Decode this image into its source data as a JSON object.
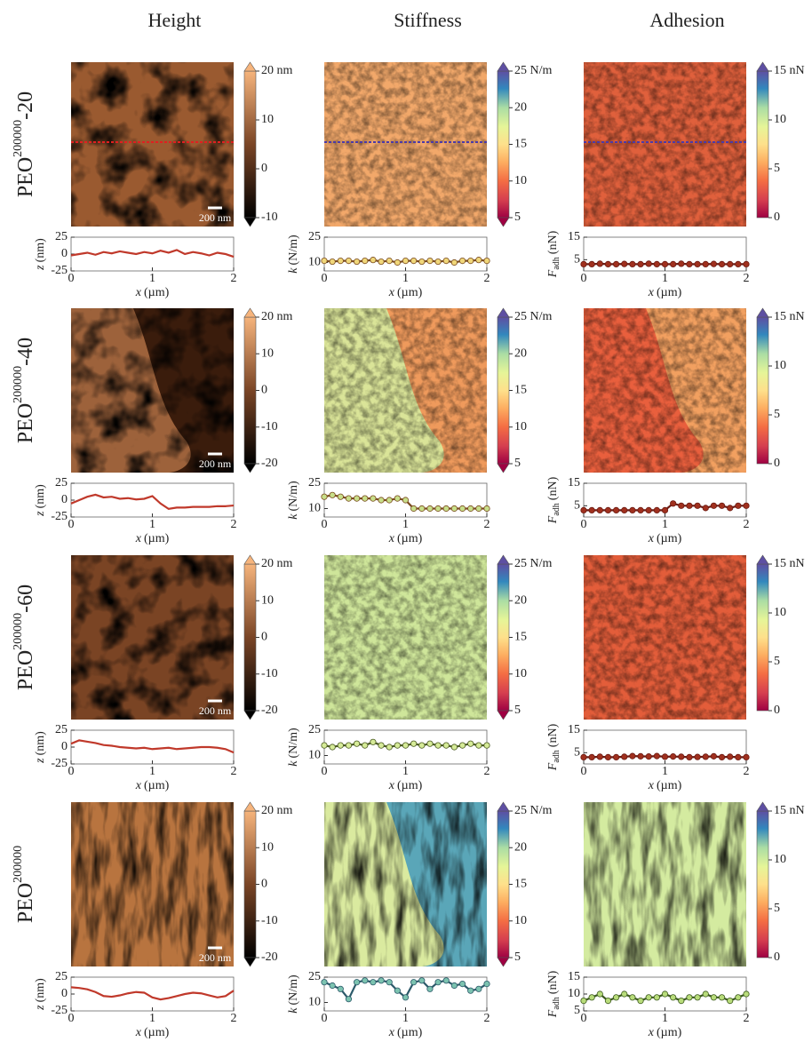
{
  "columns": [
    "Height",
    "Stiffness",
    "Adhesion"
  ],
  "rows": [
    {
      "label": {
        "base": "PEO",
        "sup": "200000",
        "suffix": "-20"
      }
    },
    {
      "label": {
        "base": "PEO",
        "sup": "200000",
        "suffix": "-40"
      }
    },
    {
      "label": {
        "base": "PEO",
        "sup": "200000",
        "suffix": "-60"
      }
    },
    {
      "label": {
        "base": "PEO",
        "sup": "200000"
      }
    }
  ],
  "chart_data": [
    {
      "type": "line",
      "map_color": "#9a5a30",
      "map_texture": "blob",
      "scale_bar": "200 nm",
      "colorbar": {
        "colormap": "copper",
        "extend": "both",
        "lim": [
          -10,
          20
        ],
        "ticks": [
          -10,
          0,
          10,
          {
            "value": 20,
            "label": "20 nm"
          }
        ]
      },
      "ylabel": {
        "symbol": "z",
        "unit": "(nm)"
      },
      "xlabel": {
        "symbol": "x",
        "unit": "(µm)"
      },
      "color": "#c0392b",
      "x": [
        0,
        0.1,
        0.2,
        0.3,
        0.4,
        0.5,
        0.6,
        0.7,
        0.8,
        0.9,
        1,
        1.1,
        1.2,
        1.3,
        1.4,
        1.5,
        1.6,
        1.7,
        1.8,
        1.9,
        2
      ],
      "values": [
        -2,
        0,
        2,
        -1,
        3,
        1,
        4,
        2,
        0,
        3,
        1,
        5,
        2,
        6,
        0,
        3,
        1,
        -2,
        2,
        0,
        -4
      ],
      "xlim": [
        0,
        2
      ],
      "xticks": [
        0,
        1,
        2
      ],
      "ylim": [
        -25,
        25
      ],
      "yticks": [
        -25,
        0,
        25
      ]
    },
    {
      "type": "line-markers",
      "map_color": "#f2a86a",
      "map_texture": "fine",
      "colorbar": {
        "colormap": "spectral",
        "extend": "both",
        "lim": [
          5,
          25
        ],
        "ticks": [
          5,
          10,
          15,
          20,
          {
            "value": 25,
            "label": "25 N/m"
          }
        ]
      },
      "ylabel": {
        "symbol": "k",
        "unit": "(N/m)"
      },
      "xlabel": {
        "symbol": "x",
        "unit": "(µm)"
      },
      "color": "#7a4b1e",
      "marker_color": "#f0d77a",
      "x": [
        0,
        0.1,
        0.2,
        0.3,
        0.4,
        0.5,
        0.6,
        0.7,
        0.8,
        0.9,
        1,
        1.1,
        1.2,
        1.3,
        1.4,
        1.5,
        1.6,
        1.7,
        1.8,
        1.9,
        2
      ],
      "values": [
        11,
        10.5,
        11,
        11,
        10.5,
        11,
        11.5,
        10.5,
        11,
        10,
        11,
        11,
        10.5,
        11,
        10.5,
        11,
        10,
        11,
        11,
        11.5,
        11
      ],
      "xlim": [
        0,
        2
      ],
      "xticks": [
        0,
        1,
        2
      ],
      "ylim": [
        5,
        25
      ],
      "yticks": [
        10,
        25
      ]
    },
    {
      "type": "line-markers",
      "map_color": "#e0603c",
      "map_texture": "fine",
      "colorbar": {
        "colormap": "spectral",
        "extend": "max",
        "lim": [
          0,
          15
        ],
        "ticks": [
          0,
          5,
          10,
          {
            "value": 15,
            "label": "15 nN"
          }
        ]
      },
      "ylabel": {
        "symbol": "F",
        "subscript": "adh",
        "unit": "(nN)"
      },
      "xlabel": {
        "symbol": "x",
        "unit": "(µm)"
      },
      "color": "#6b1a12",
      "marker_color": "#a0301e",
      "x": [
        0,
        0.1,
        0.2,
        0.3,
        0.4,
        0.5,
        0.6,
        0.7,
        0.8,
        0.9,
        1,
        1.1,
        1.2,
        1.3,
        1.4,
        1.5,
        1.6,
        1.7,
        1.8,
        1.9,
        2
      ],
      "values": [
        3,
        3,
        3.2,
        3,
        3,
        3.1,
        3,
        3,
        3.2,
        3,
        3,
        3,
        3.2,
        3,
        3,
        3,
        3.1,
        3,
        3,
        3,
        3
      ],
      "xlim": [
        0,
        2
      ],
      "xticks": [
        0,
        1,
        2
      ],
      "ylim": [
        0,
        15
      ],
      "yticks": [
        5,
        15
      ]
    },
    {
      "type": "line",
      "map_color": "#3a1c0c",
      "map_region_color": "#a86a40",
      "map_texture": "blob",
      "scale_bar": "200 nm",
      "colorbar": {
        "colormap": "copper",
        "extend": "both",
        "lim": [
          -20,
          20
        ],
        "ticks": [
          -20,
          -10,
          0,
          10,
          {
            "value": 20,
            "label": "20 nm"
          }
        ]
      },
      "ylabel": {
        "symbol": "z",
        "unit": "(nm)"
      },
      "xlabel": {
        "symbol": "x",
        "unit": "(µm)"
      },
      "color": "#c0392b",
      "x": [
        0,
        0.1,
        0.2,
        0.3,
        0.4,
        0.5,
        0.6,
        0.7,
        0.8,
        0.9,
        1,
        1.1,
        1.2,
        1.3,
        1.4,
        1.5,
        1.6,
        1.7,
        1.8,
        1.9,
        2
      ],
      "values": [
        -5,
        0,
        5,
        8,
        4,
        5,
        2,
        3,
        1,
        2,
        6,
        -5,
        -13,
        -11,
        -11,
        -10,
        -10,
        -10,
        -9,
        -9,
        -8
      ],
      "xlim": [
        0,
        2
      ],
      "xticks": [
        0,
        1,
        2
      ],
      "ylim": [
        -25,
        25
      ],
      "yticks": [
        -25,
        0,
        25
      ]
    },
    {
      "type": "line-markers",
      "map_color": "#ef9a5c",
      "map_region_color": "#d7ec9e",
      "map_texture": "fine",
      "colorbar": {
        "colormap": "spectral",
        "extend": "both",
        "lim": [
          5,
          25
        ],
        "ticks": [
          5,
          10,
          15,
          20,
          {
            "value": 25,
            "label": "25 N/m"
          }
        ]
      },
      "ylabel": {
        "symbol": "k",
        "unit": "(N/m)"
      },
      "xlabel": {
        "symbol": "x",
        "unit": "(µm)"
      },
      "color": "#7a4b1e",
      "marker_color": "#c8df8a",
      "x": [
        0,
        0.1,
        0.2,
        0.3,
        0.4,
        0.5,
        0.6,
        0.7,
        0.8,
        0.9,
        1,
        1.1,
        1.2,
        1.3,
        1.4,
        1.5,
        1.6,
        1.7,
        1.8,
        1.9,
        2
      ],
      "values": [
        17,
        18,
        17,
        16,
        16,
        16,
        16,
        15,
        15,
        16,
        15,
        10,
        10,
        10,
        10,
        10,
        10,
        10,
        10,
        10,
        10
      ],
      "xlim": [
        0,
        2
      ],
      "xticks": [
        0,
        1,
        2
      ],
      "ylim": [
        5,
        25
      ],
      "yticks": [
        10,
        25
      ]
    },
    {
      "type": "line-markers",
      "map_color": "#f2a060",
      "map_region_color": "#e8583a",
      "map_texture": "fine",
      "colorbar": {
        "colormap": "spectral",
        "extend": "max",
        "lim": [
          0,
          15
        ],
        "ticks": [
          0,
          5,
          10,
          {
            "value": 15,
            "label": "15 nN"
          }
        ]
      },
      "ylabel": {
        "symbol": "F",
        "subscript": "adh",
        "unit": "(nN)"
      },
      "xlabel": {
        "symbol": "x",
        "unit": "(µm)"
      },
      "color": "#6b1a12",
      "marker_color": "#a0301e",
      "x": [
        0,
        0.1,
        0.2,
        0.3,
        0.4,
        0.5,
        0.6,
        0.7,
        0.8,
        0.9,
        1,
        1.1,
        1.2,
        1.3,
        1.4,
        1.5,
        1.6,
        1.7,
        1.8,
        1.9,
        2
      ],
      "values": [
        3,
        3,
        3,
        3,
        3,
        3,
        3,
        3,
        3,
        3,
        3,
        6,
        5,
        5,
        5,
        4,
        5,
        5,
        4,
        5,
        5
      ],
      "xlim": [
        0,
        2
      ],
      "xticks": [
        0,
        1,
        2
      ],
      "ylim": [
        0,
        15
      ],
      "yticks": [
        5,
        15
      ]
    },
    {
      "type": "line",
      "map_color": "#7a4424",
      "map_texture": "blob",
      "scale_bar": "200 nm",
      "colorbar": {
        "colormap": "copper",
        "extend": "both",
        "lim": [
          -20,
          20
        ],
        "ticks": [
          -20,
          -10,
          0,
          10,
          {
            "value": 20,
            "label": "20 nm"
          }
        ]
      },
      "ylabel": {
        "symbol": "z",
        "unit": "(nm)"
      },
      "xlabel": {
        "symbol": "x",
        "unit": "(µm)"
      },
      "color": "#c0392b",
      "x": [
        0,
        0.1,
        0.2,
        0.3,
        0.4,
        0.5,
        0.6,
        0.7,
        0.8,
        0.9,
        1,
        1.1,
        1.2,
        1.3,
        1.4,
        1.5,
        1.6,
        1.7,
        1.8,
        1.9,
        2
      ],
      "values": [
        5,
        10,
        8,
        6,
        3,
        2,
        0,
        -1,
        -2,
        -1,
        -3,
        -2,
        -1,
        -3,
        -2,
        -1,
        0,
        0,
        -1,
        -3,
        -8
      ],
      "xlim": [
        0,
        2
      ],
      "xticks": [
        0,
        1,
        2
      ],
      "ylim": [
        -25,
        25
      ],
      "yticks": [
        -25,
        0,
        25
      ]
    },
    {
      "type": "line-markers",
      "map_color": "#cfe69a",
      "map_texture": "fine",
      "colorbar": {
        "colormap": "spectral",
        "extend": "both",
        "lim": [
          5,
          25
        ],
        "ticks": [
          5,
          10,
          15,
          20,
          {
            "value": 25,
            "label": "25 N/m"
          }
        ]
      },
      "ylabel": {
        "symbol": "k",
        "unit": "(N/m)"
      },
      "xlabel": {
        "symbol": "x",
        "unit": "(µm)"
      },
      "color": "#4a5a22",
      "marker_color": "#d6eb98",
      "x": [
        0,
        0.1,
        0.2,
        0.3,
        0.4,
        0.5,
        0.6,
        0.7,
        0.8,
        0.9,
        1,
        1.1,
        1.2,
        1.3,
        1.4,
        1.5,
        1.6,
        1.7,
        1.8,
        1.9,
        2
      ],
      "values": [
        16,
        15,
        16,
        16,
        17,
        16,
        18,
        16,
        15,
        16,
        16,
        17,
        16,
        17,
        16,
        16,
        15,
        16,
        17,
        16,
        16
      ],
      "xlim": [
        0,
        2
      ],
      "xticks": [
        0,
        1,
        2
      ],
      "ylim": [
        5,
        25
      ],
      "yticks": [
        10,
        25
      ]
    },
    {
      "type": "line-markers",
      "map_color": "#e35d3a",
      "map_texture": "fine",
      "colorbar": {
        "colormap": "spectral",
        "extend": "max",
        "lim": [
          0,
          15
        ],
        "ticks": [
          0,
          5,
          10,
          {
            "value": 15,
            "label": "15 nN"
          }
        ]
      },
      "ylabel": {
        "symbol": "F",
        "subscript": "adh",
        "unit": "(nN)"
      },
      "xlabel": {
        "symbol": "x",
        "unit": "(µm)"
      },
      "color": "#6b1a12",
      "marker_color": "#a0301e",
      "x": [
        0,
        0.1,
        0.2,
        0.3,
        0.4,
        0.5,
        0.6,
        0.7,
        0.8,
        0.9,
        1,
        1.1,
        1.2,
        1.3,
        1.4,
        1.5,
        1.6,
        1.7,
        1.8,
        1.9,
        2
      ],
      "values": [
        3,
        3,
        3.2,
        3,
        3,
        3.2,
        3.5,
        3.4,
        3.3,
        3.5,
        3.2,
        3.3,
        3.2,
        3,
        3.1,
        3.2,
        3.4,
        3,
        3.2,
        3,
        3
      ],
      "xlim": [
        0,
        2
      ],
      "xticks": [
        0,
        1,
        2
      ],
      "ylim": [
        0,
        15
      ],
      "yticks": [
        5,
        15
      ]
    },
    {
      "type": "line",
      "map_color": "#b8743f",
      "map_texture": "streak",
      "scale_bar": "200 nm",
      "colorbar": {
        "colormap": "copper",
        "extend": "both",
        "lim": [
          -20,
          20
        ],
        "ticks": [
          -20,
          -10,
          0,
          10,
          {
            "value": 20,
            "label": "20 nm"
          }
        ]
      },
      "ylabel": {
        "symbol": "z",
        "unit": "(nm)"
      },
      "xlabel": {
        "symbol": "x",
        "unit": "(µm)"
      },
      "color": "#c0392b",
      "x": [
        0,
        0.1,
        0.2,
        0.3,
        0.4,
        0.5,
        0.6,
        0.7,
        0.8,
        0.9,
        1,
        1.1,
        1.2,
        1.3,
        1.4,
        1.5,
        1.6,
        1.7,
        1.8,
        1.9,
        2
      ],
      "values": [
        10,
        9,
        7,
        3,
        -3,
        -4,
        -2,
        1,
        3,
        2,
        -5,
        -8,
        -6,
        -3,
        0,
        2,
        1,
        -2,
        -5,
        -3,
        5
      ],
      "xlim": [
        0,
        2
      ],
      "xticks": [
        0,
        1,
        2
      ],
      "ylim": [
        -25,
        25
      ],
      "yticks": [
        -25,
        0,
        25
      ]
    },
    {
      "type": "line-markers",
      "map_color": "#5aa6b8",
      "map_region_color": "#e8f29c",
      "map_texture": "streak",
      "colorbar": {
        "colormap": "spectral",
        "extend": "both",
        "lim": [
          5,
          25
        ],
        "ticks": [
          5,
          10,
          15,
          20,
          {
            "value": 25,
            "label": "25 N/m"
          }
        ]
      },
      "ylabel": {
        "symbol": "k",
        "unit": "(N/m)"
      },
      "xlabel": {
        "symbol": "x",
        "unit": "(µm)"
      },
      "color": "#2c5a6a",
      "marker_color": "#7cc3b0",
      "x": [
        0,
        0.1,
        0.2,
        0.3,
        0.4,
        0.5,
        0.6,
        0.7,
        0.8,
        0.9,
        1,
        1.1,
        1.2,
        1.3,
        1.4,
        1.5,
        1.6,
        1.7,
        1.8,
        1.9,
        2
      ],
      "values": [
        22,
        20,
        18,
        12,
        22,
        23,
        22,
        23,
        22,
        17,
        13,
        22,
        23,
        18,
        22,
        23,
        20,
        21,
        17,
        18,
        21
      ],
      "xlim": [
        0,
        2
      ],
      "xticks": [
        0,
        1,
        2
      ],
      "ylim": [
        5,
        25
      ],
      "yticks": [
        10,
        25
      ]
    },
    {
      "type": "line-markers",
      "map_color": "#d4eba0",
      "map_texture": "streak",
      "colorbar": {
        "colormap": "spectral",
        "extend": "max",
        "lim": [
          0,
          15
        ],
        "ticks": [
          0,
          5,
          10,
          {
            "value": 15,
            "label": "15 nN"
          }
        ]
      },
      "ylabel": {
        "symbol": "F",
        "subscript": "adh",
        "unit": "(nN)"
      },
      "xlabel": {
        "symbol": "x",
        "unit": "(µm)"
      },
      "color": "#3c5a1e",
      "marker_color": "#b8dc7a",
      "x": [
        0,
        0.1,
        0.2,
        0.3,
        0.4,
        0.5,
        0.6,
        0.7,
        0.8,
        0.9,
        1,
        1.1,
        1.2,
        1.3,
        1.4,
        1.5,
        1.6,
        1.7,
        1.8,
        1.9,
        2
      ],
      "values": [
        8,
        9,
        10,
        8,
        9,
        10,
        9,
        8,
        9,
        9,
        10,
        9,
        8,
        9,
        9,
        10,
        9,
        9,
        8,
        9,
        10
      ],
      "xlim": [
        0,
        2
      ],
      "xticks": [
        0,
        1,
        2
      ],
      "ylim": [
        5,
        15
      ],
      "yticks": [
        5,
        10,
        15
      ]
    }
  ]
}
